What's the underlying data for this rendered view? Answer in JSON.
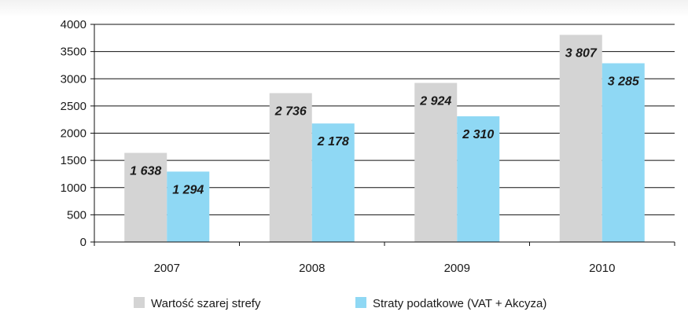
{
  "chart_data": {
    "type": "bar",
    "title": "",
    "xlabel": "",
    "ylabel": "",
    "categories": [
      "2007",
      "2008",
      "2009",
      "2010"
    ],
    "ylim": [
      0,
      4000
    ],
    "yticks": [
      0,
      500,
      1000,
      1500,
      2000,
      2500,
      3000,
      3500,
      4000
    ],
    "grid": true,
    "legend_position": "bottom",
    "series": [
      {
        "name": "Wartość szarej strefy",
        "color": "#d4d4d4",
        "values": [
          1638,
          2736,
          2924,
          3807
        ],
        "labels": [
          "1 638",
          "2 736",
          "2 924",
          "3 807"
        ]
      },
      {
        "name": "Straty podatkowe (VAT + Akcyza)",
        "color": "#8fd8f4",
        "values": [
          1294,
          2178,
          2310,
          3285
        ],
        "labels": [
          "1 294",
          "2 178",
          "2 310",
          "3 285"
        ]
      }
    ]
  }
}
